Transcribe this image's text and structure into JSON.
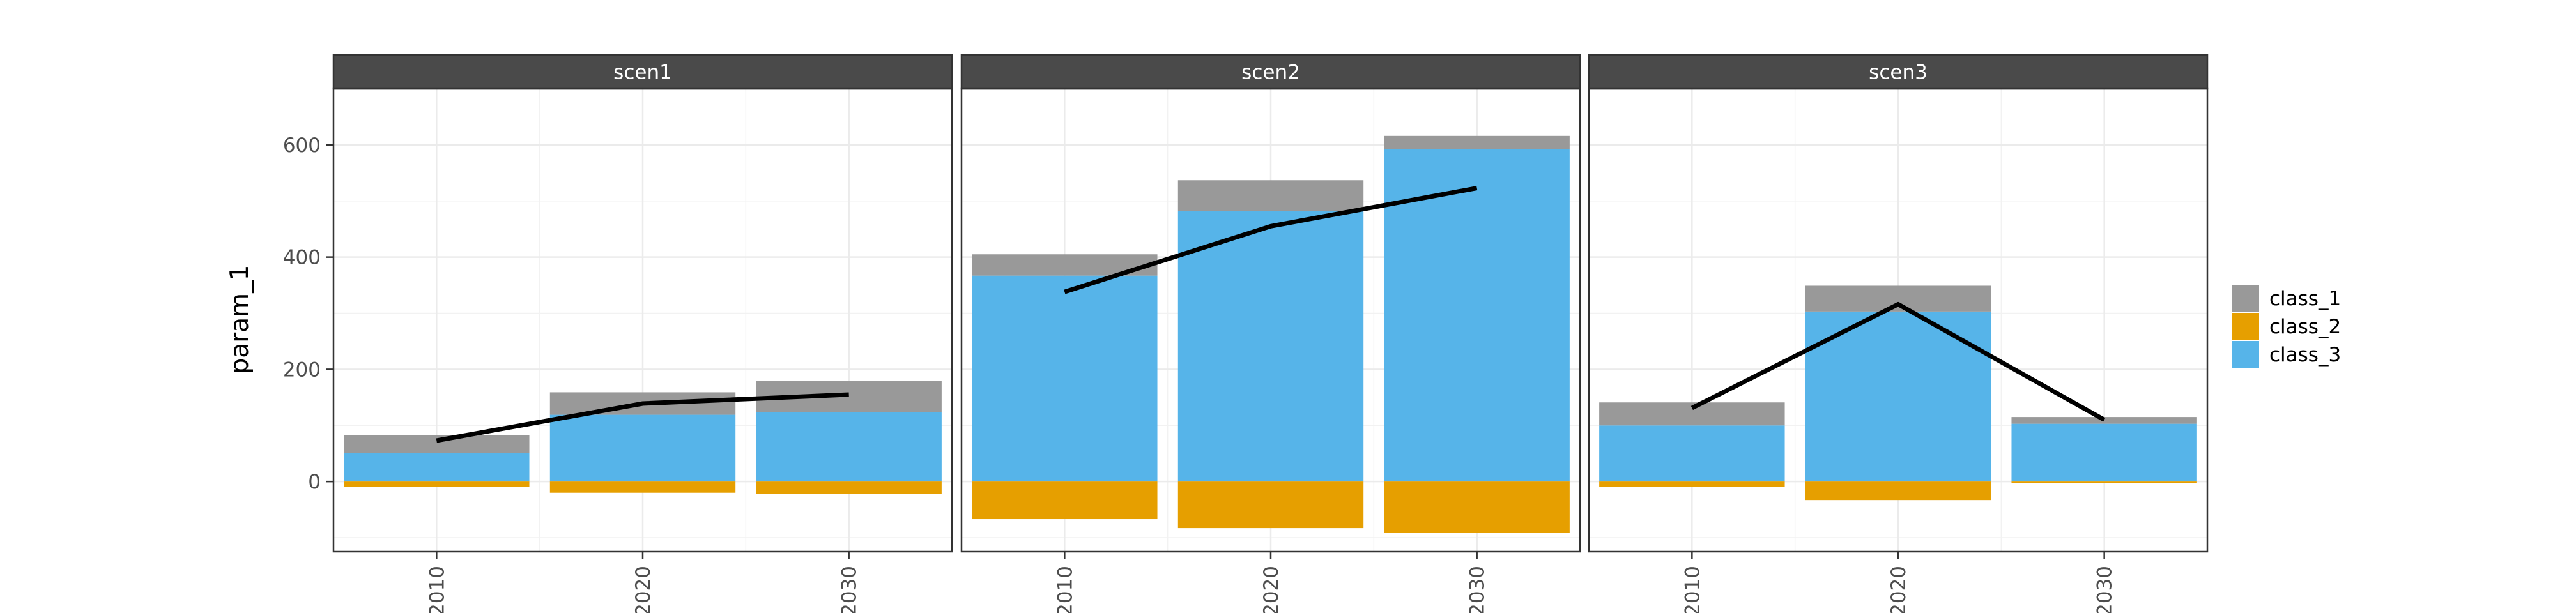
{
  "chart_data": {
    "type": "bar",
    "facets": [
      "scen1",
      "scen2",
      "scen3"
    ],
    "categories": [
      "2010",
      "2020",
      "2030"
    ],
    "ylabel": "param_1",
    "xlabel": "",
    "ylim": [
      -125,
      700
    ],
    "yticks": [
      0,
      200,
      400,
      600
    ],
    "stacked": true,
    "legend": "right",
    "grid": true,
    "series": [
      {
        "name": "class_1",
        "color": "#999999",
        "values": {
          "scen1": [
            32,
            40,
            55
          ],
          "scen2": [
            38,
            55,
            24
          ],
          "scen3": [
            41,
            46,
            12
          ]
        }
      },
      {
        "name": "class_2",
        "color": "#E69F00",
        "values": {
          "scen1": [
            -10,
            -20,
            -22
          ],
          "scen2": [
            -67,
            -83,
            -92
          ],
          "scen3": [
            -10,
            -33,
            -3
          ]
        }
      },
      {
        "name": "class_3",
        "color": "#56B4E9",
        "values": {
          "scen1": [
            51,
            119,
            124
          ],
          "scen2": [
            367,
            482,
            592
          ],
          "scen3": [
            100,
            303,
            103
          ]
        }
      }
    ],
    "line": {
      "color": "#000000",
      "values": {
        "scen1": [
          73,
          139,
          155
        ],
        "scen2": [
          338,
          455,
          523
        ],
        "scen3": [
          131,
          316,
          110
        ]
      }
    }
  }
}
